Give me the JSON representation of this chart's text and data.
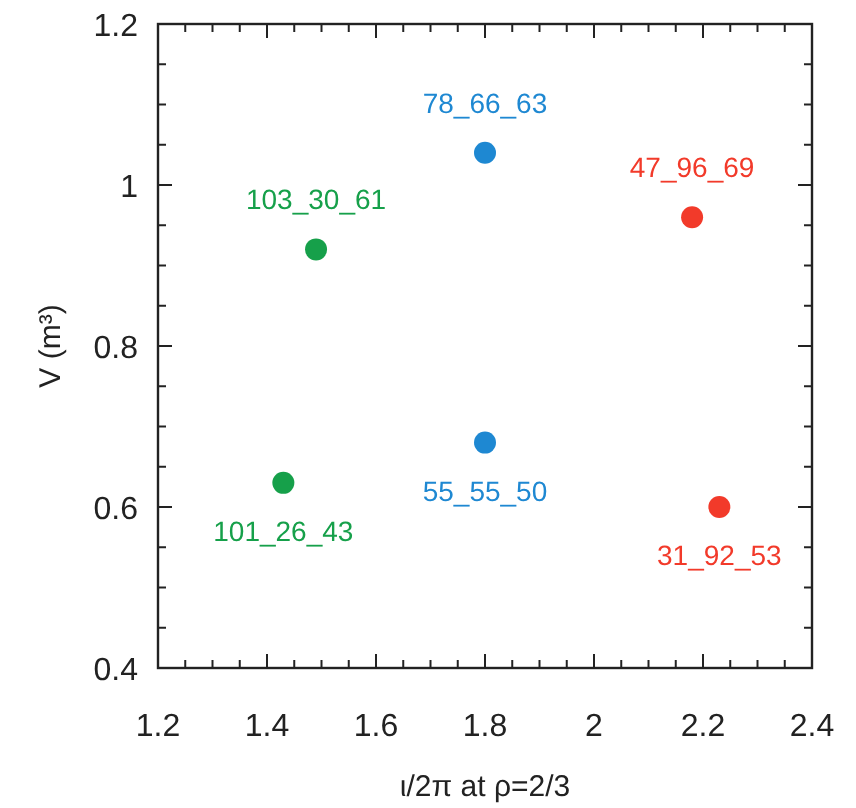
{
  "chart_data": {
    "type": "scatter",
    "xlabel": "ι/2π at ρ=2/3",
    "ylabel": "V (m³)",
    "xlim": [
      1.2,
      2.4
    ],
    "ylim": [
      0.4,
      1.2
    ],
    "xticks": [
      1.2,
      {
        "value": 1.25,
        "label": null
      },
      {
        "value": 1.3,
        "label": null
      },
      {
        "value": 1.35,
        "label": null
      },
      1.4,
      {
        "value": 1.45,
        "label": null
      },
      {
        "value": 1.5,
        "label": null
      },
      {
        "value": 1.55,
        "label": null
      },
      1.6,
      {
        "value": 1.65,
        "label": null
      },
      {
        "value": 1.7,
        "label": null
      },
      {
        "value": 1.75,
        "label": null
      },
      1.8,
      {
        "value": 1.85,
        "label": null
      },
      {
        "value": 1.9,
        "label": null
      },
      {
        "value": 1.95,
        "label": null
      },
      2,
      {
        "value": 2.05,
        "label": null
      },
      {
        "value": 2.1,
        "label": null
      },
      {
        "value": 2.15,
        "label": null
      },
      2.2,
      {
        "value": 2.25,
        "label": null
      },
      {
        "value": 2.3,
        "label": null
      },
      {
        "value": 2.35,
        "label": null
      },
      2.4
    ],
    "yticks": [
      0.4,
      {
        "value": 0.45,
        "label": null
      },
      {
        "value": 0.5,
        "label": null
      },
      {
        "value": 0.55,
        "label": null
      },
      0.6,
      {
        "value": 0.65,
        "label": null
      },
      {
        "value": 0.7,
        "label": null
      },
      {
        "value": 0.75,
        "label": null
      },
      0.8,
      {
        "value": 0.85,
        "label": null
      },
      {
        "value": 0.9,
        "label": null
      },
      {
        "value": 0.95,
        "label": null
      },
      1,
      {
        "value": 1.05,
        "label": null
      },
      {
        "value": 1.1,
        "label": null
      },
      {
        "value": 1.15,
        "label": null
      },
      1.2
    ],
    "marker": "circle",
    "grid": false,
    "series": [
      {
        "color": "#16a04a",
        "x": [
          1.49,
          1.43
        ],
        "values": [
          0.92,
          0.63
        ]
      },
      {
        "color": "#1e88d2",
        "x": [
          1.8,
          1.8
        ],
        "values": [
          1.04,
          0.68
        ]
      },
      {
        "color": "#f23a2a",
        "x": [
          2.18,
          2.23
        ],
        "values": [
          0.96,
          0.6
        ]
      }
    ],
    "annotations": [
      {
        "text": "103_30_61",
        "x": 1.49,
        "y": 0.92
      },
      {
        "text": "101_26_43",
        "x": 1.43,
        "y": 0.63
      },
      {
        "text": "78_66_63",
        "x": 1.8,
        "y": 1.04
      },
      {
        "text": "55_55_50",
        "x": 1.8,
        "y": 0.68
      },
      {
        "text": "47_96_69",
        "x": 2.18,
        "y": 0.96
      },
      {
        "text": "31_92_53",
        "x": 2.23,
        "y": 0.6
      }
    ]
  }
}
